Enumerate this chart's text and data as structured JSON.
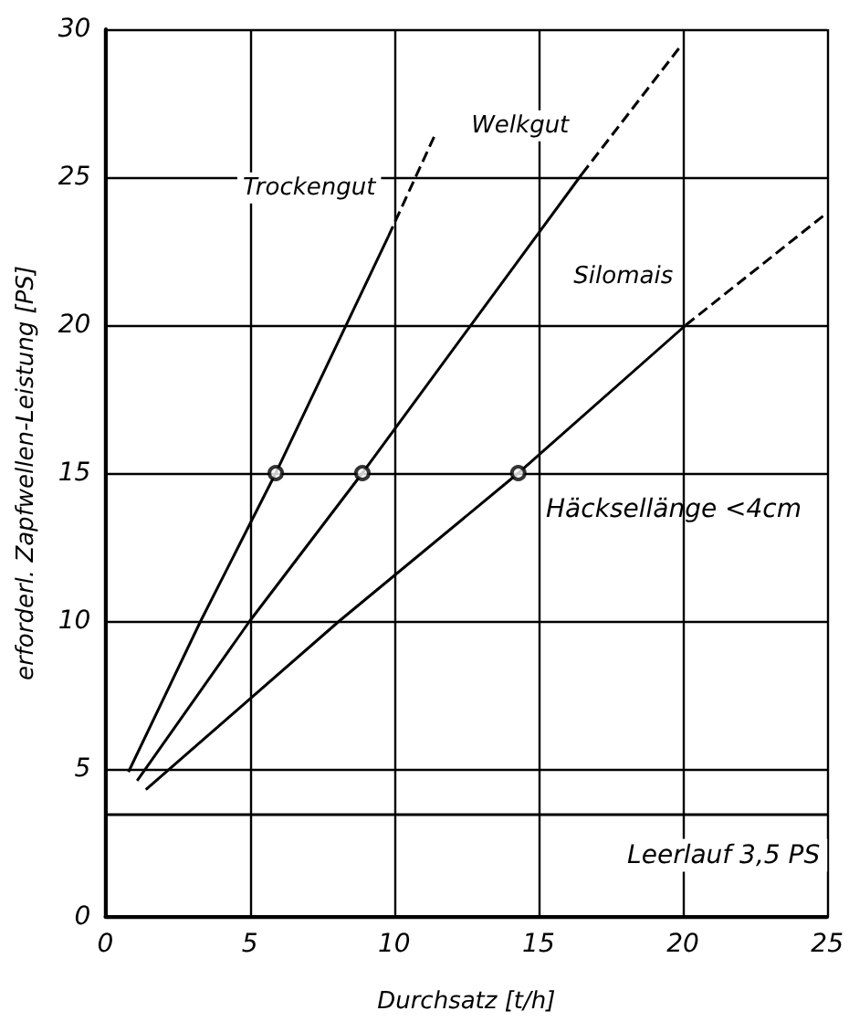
{
  "chart_data": {
    "type": "line",
    "xlabel": "Durchsatz [t/h]",
    "ylabel": "erforderl. Zapfwellen-Leistung [PS]",
    "xlim": [
      0,
      25
    ],
    "xticks": [
      0,
      5,
      10,
      15,
      20,
      25
    ],
    "ylim": [
      0,
      30
    ],
    "yticks": [
      0,
      5,
      10,
      15,
      20,
      25,
      30
    ],
    "grid": true,
    "marker": "none",
    "line_style": "solid",
    "series": [
      {
        "name": "Trockengut",
        "color": "#000000",
        "x": [
          0.8,
          3.3,
          5.9,
          9.8
        ],
        "values": [
          4.9,
          10,
          15,
          23
        ]
      },
      {
        "color": "#000000",
        "line_style": "dashed",
        "x": [
          9.8,
          11.4
        ],
        "values": [
          23,
          26.4
        ]
      },
      {
        "name": "Welkgut",
        "color": "#000000",
        "x": [
          1.1,
          5,
          8.9,
          16.5
        ],
        "values": [
          4.6,
          10,
          15,
          25.1
        ]
      },
      {
        "color": "#000000",
        "line_style": "dashed",
        "x": [
          16.5,
          19.9
        ],
        "values": [
          25.1,
          29.4
        ]
      },
      {
        "name": "Silomais",
        "color": "#000000",
        "x": [
          1.4,
          8.1,
          14.3,
          20.1
        ],
        "values": [
          4.3,
          10,
          15,
          20
        ]
      },
      {
        "color": "#000000",
        "line_style": "dashed",
        "x": [
          20.1,
          25
        ],
        "values": [
          20,
          23.8
        ]
      },
      {
        "type": "scatter",
        "color": "#000000",
        "marker": "circle",
        "x": [
          5.9,
          8.9,
          14.3
        ],
        "values": [
          15,
          15,
          15
        ]
      }
    ],
    "ref_lines": [
      {
        "axis": "y",
        "value": 3.5,
        "label": "Leerlauf 3,5 PS"
      }
    ],
    "annotations": [
      "Häcksellänge <4cm"
    ]
  }
}
